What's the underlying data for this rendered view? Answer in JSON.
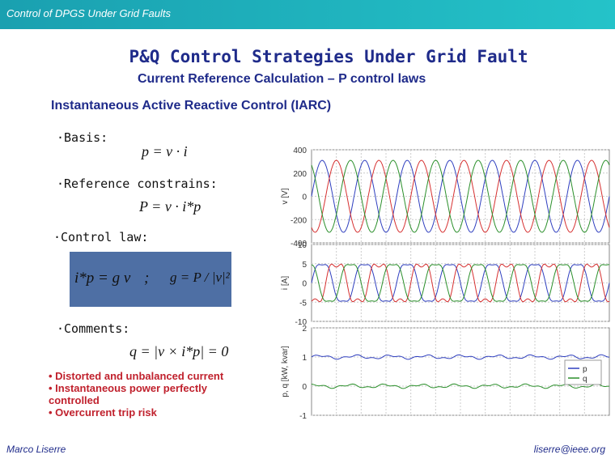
{
  "header": {
    "title": "Control of DPGS Under Grid Faults"
  },
  "main_title": "P&Q Control Strategies Under Grid Fault",
  "subtitle": "Current Reference Calculation – P control laws",
  "section_title": "Instantaneous Active Reactive Control (IARC)",
  "bullets": {
    "basis": "·Basis:",
    "reference": "·Reference constrains:",
    "control_law": "·Control law:",
    "comments": "·Comments:"
  },
  "equations": {
    "basis": "p = v · i",
    "reference": "P = v · i*p",
    "control_law_left": "i*p = g v",
    "control_law_sep": ";",
    "control_law_right": "g = P / |v|²",
    "comments": "q = |v × i*p| = 0"
  },
  "comments_list": [
    "• Distorted and unbalanced current",
    "• Instantaneous power perfectly controlled",
    "• Overcurrent trip risk"
  ],
  "footer": {
    "author": "Marco Liserre",
    "email": "liserre@ieee.org"
  },
  "colors": {
    "header": "#24c3c9",
    "title": "#1f2b8a",
    "notes": "#c0212d",
    "law_box": "#4e6fa4"
  },
  "chart_data": [
    {
      "type": "line",
      "ylabel": "v [V]",
      "ylim": [
        -400,
        400
      ],
      "yticks": [
        "400",
        "200",
        "0",
        "-200",
        "-400"
      ],
      "grid": true,
      "series_colors": [
        "#2f3fbf",
        "#d63030",
        "#2a8f2a"
      ]
    },
    {
      "type": "line",
      "ylabel": "i [A]",
      "ylim": [
        -10,
        10
      ],
      "yticks": [
        "10",
        "5",
        "0",
        "-5",
        "-10"
      ],
      "grid": true,
      "series_colors": [
        "#2f3fbf",
        "#d63030",
        "#2a8f2a"
      ]
    },
    {
      "type": "line",
      "ylabel": "p, q [kW, kvar]",
      "ylim": [
        -1,
        2
      ],
      "yticks": [
        "2",
        "1",
        "0",
        "-1"
      ],
      "grid": true,
      "legend": [
        "p",
        "q"
      ],
      "legend_position": "top-right",
      "series": [
        {
          "name": "p",
          "color": "#2f3fbf",
          "level": 1.0
        },
        {
          "name": "q",
          "color": "#2a8f2a",
          "level": 0.0
        }
      ]
    }
  ]
}
